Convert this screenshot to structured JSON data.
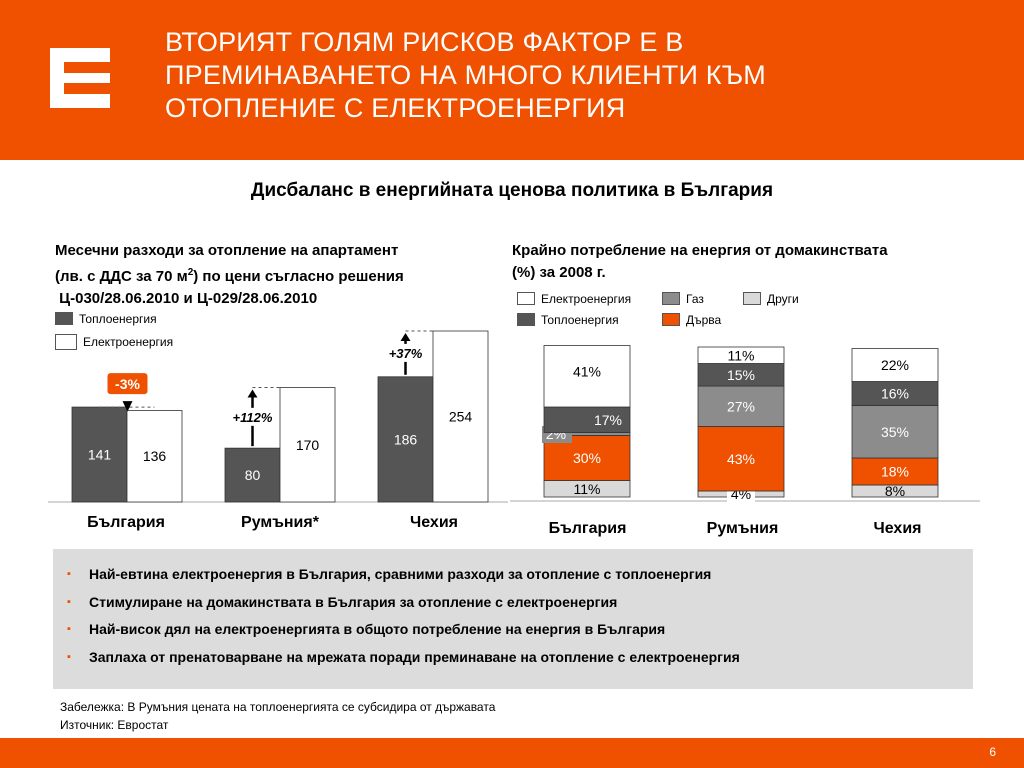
{
  "header": {
    "title_lines": [
      "ВТОРИЯТ ГОЛЯМ РИСКОВ ФАКТОР Е В",
      "ПРЕМИНАВАНЕТО НА МНОГО КЛИЕНТИ КЪМ",
      "ОТОПЛЕНИЕ С ЕЛЕКТРОЕНЕРГИЯ"
    ]
  },
  "subtitle": "Дисбаланс в енергийната ценова политика в България",
  "colors": {
    "brand_orange": "#ef5100",
    "heat_dark": "#555555",
    "gas_grey": "#8c8c8c",
    "other_light": "#d9d9d9",
    "electricity_white": "#ffffff"
  },
  "left_chart": {
    "title_line1": "Месечни разходи за отопление на апартамент",
    "title_line2_pre": "(лв. с ДДС за 70 м",
    "title_line2_sup": "2",
    "title_line2_post": ") по цени съгласно решения",
    "title_line3": " Ц-030/28.06.2010 и Ц-029/28.06.2010",
    "legend": [
      "Топлоенергия",
      "Електроенергия"
    ],
    "changes": [
      "-3%",
      "+112%",
      "+37%"
    ]
  },
  "right_chart": {
    "title_line1": "Крайно потребление на енергия от домакинствата",
    "title_line2": "(%) за 2008 г.",
    "legend": [
      "Електроенергия",
      "Газ",
      "Други",
      "Топлоенергия",
      "Дърва"
    ]
  },
  "chart_data": [
    {
      "type": "bar",
      "title": "Месечни разходи за отопление на апартамент (лв. с ДДС за 70 м2) по цени съгласно решения Ц-030/28.06.2010 и Ц-029/28.06.2010",
      "categories": [
        "България",
        "Румъния*",
        "Чехия"
      ],
      "series": [
        {
          "name": "Топлоенергия",
          "values": [
            141,
            80,
            186
          ]
        },
        {
          "name": "Електроенергия",
          "values": [
            136,
            170,
            254
          ]
        }
      ],
      "annotations": [
        "-3%",
        "+112%",
        "+37%"
      ],
      "ylim": [
        0,
        260
      ]
    },
    {
      "type": "bar",
      "stacked": true,
      "title": "Крайно потребление на енергия от домакинствата (%) за 2008 г.",
      "categories": [
        "България",
        "Румъния",
        "Чехия"
      ],
      "stack_order": [
        "Други",
        "Дърва",
        "Газ",
        "Топлоенергия",
        "Електроенергия"
      ],
      "series": [
        {
          "name": "Други",
          "values": [
            11,
            4,
            8
          ],
          "labels": [
            "11%",
            "4%",
            "8%"
          ]
        },
        {
          "name": "Дърва",
          "values": [
            30,
            43,
            18
          ],
          "labels": [
            "30%",
            "43%",
            "18%"
          ]
        },
        {
          "name": "Газ",
          "values": [
            2,
            27,
            35
          ],
          "labels": [
            "2%",
            "27%",
            "35%"
          ]
        },
        {
          "name": "Топлоенергия",
          "values": [
            17,
            15,
            16
          ],
          "labels": [
            "17%",
            "15%",
            "16%"
          ]
        },
        {
          "name": "Електроенергия",
          "values": [
            41,
            11,
            22
          ],
          "labels": [
            "41%",
            "11%",
            "22%"
          ]
        }
      ],
      "ylim": [
        0,
        100
      ]
    }
  ],
  "bullets": [
    "Най-евтина електроенергия в България, сравними разходи за отопление с топлоенергия",
    "Стимулиране на домакинствата в България за отопление с електроенергия",
    "Най-висок дял на електроенергията в общото потребление на енергия в България",
    "Заплаха от пренатоварване на мрежата поради преминаване на отопление с електроенергия"
  ],
  "bullet_marker": "▪",
  "notes": [
    "Забележка: В Румъния цената на топлоенергията се субсидира от държавата",
    "Източник: Евростат"
  ],
  "page_number": "6"
}
